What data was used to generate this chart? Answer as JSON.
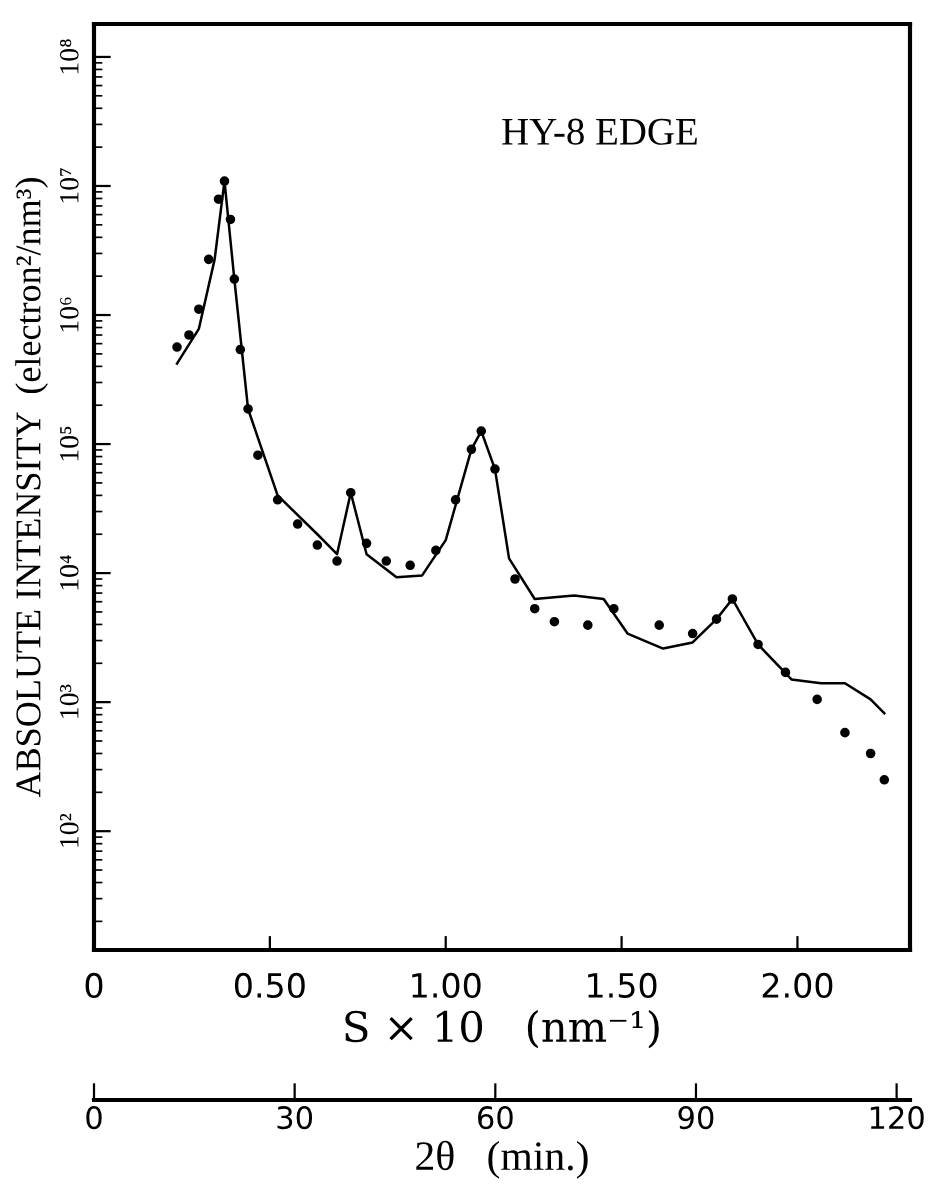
{
  "chart_data": {
    "type": "line",
    "xlabel": "S × 10   (nm⁻¹)",
    "ylabel": "ABSOLUTE INTENSITY  (electron²/nm³)",
    "annotations": [
      "HY-8 EDGE"
    ],
    "log": "y",
    "xlim": [
      0,
      2.32
    ],
    "xticks": [
      0,
      {
        "value": 0.5,
        "label": "0.50"
      },
      {
        "value": 1.0,
        "label": "1.00"
      },
      {
        "value": 1.5,
        "label": "1.50"
      },
      {
        "value": 2.0,
        "label": "2.00"
      }
    ],
    "ylim": [
      12,
      180000000
    ],
    "yticks": [
      {
        "value": 100,
        "label": "10²"
      },
      {
        "value": 1000,
        "label": "10³"
      },
      {
        "value": 10000,
        "label": "10⁴"
      },
      {
        "value": 100000,
        "label": "10⁵"
      },
      {
        "value": 1000000,
        "label": "10⁶"
      },
      {
        "value": 10000000,
        "label": "10⁷"
      },
      {
        "value": 100000000,
        "label": "10⁸"
      }
    ],
    "x2lim": [
      0,
      122
    ],
    "x2ticks": [
      0,
      30,
      60,
      90,
      120
    ],
    "x2label": "2θ   (min.)",
    "series": [
      {
        "type": "scatter",
        "marker": "circle",
        "color": "#000000",
        "x": [
          0.236,
          0.27,
          0.298,
          0.326,
          0.354,
          0.371,
          0.388,
          0.399,
          0.416,
          0.438,
          0.466,
          0.522,
          0.579,
          0.635,
          0.691,
          0.73,
          0.775,
          0.831,
          0.899,
          0.972,
          1.028,
          1.073,
          1.101,
          1.14,
          1.197,
          1.253,
          1.309,
          1.404,
          1.478,
          1.607,
          1.702,
          1.77,
          1.815,
          1.888,
          1.966,
          2.056,
          2.135,
          2.208,
          2.247
        ],
        "values": [
          565000,
          700000,
          1110000,
          2700000,
          7900000,
          10900000,
          5500000,
          1900000,
          540000,
          187000,
          82000,
          37000,
          24000,
          16500,
          12400,
          42000,
          17000,
          12400,
          11500,
          15000,
          37000,
          91000,
          126000,
          64000,
          9000,
          5300,
          4200,
          3950,
          5300,
          3950,
          3400,
          4400,
          6300,
          2800,
          1700,
          1050,
          580,
          400,
          250
        ]
      },
      {
        "type": "line",
        "color": "#000000",
        "x": [
          0.236,
          0.298,
          0.343,
          0.371,
          0.399,
          0.438,
          0.522,
          0.635,
          0.691,
          0.73,
          0.775,
          0.86,
          0.933,
          1.0,
          1.073,
          1.101,
          1.14,
          1.18,
          1.253,
          1.365,
          1.449,
          1.517,
          1.618,
          1.702,
          1.77,
          1.815,
          1.888,
          1.983,
          2.067,
          2.135,
          2.208,
          2.247
        ],
        "values": [
          420000,
          780000,
          2700000,
          10900000,
          1900000,
          187000,
          40000,
          20000,
          14000,
          42000,
          14000,
          9300,
          9600,
          18000,
          91000,
          126000,
          64000,
          13000,
          6300,
          6700,
          6300,
          3400,
          2600,
          2900,
          4400,
          6300,
          2800,
          1500,
          1400,
          1400,
          1050,
          820
        ]
      }
    ]
  }
}
